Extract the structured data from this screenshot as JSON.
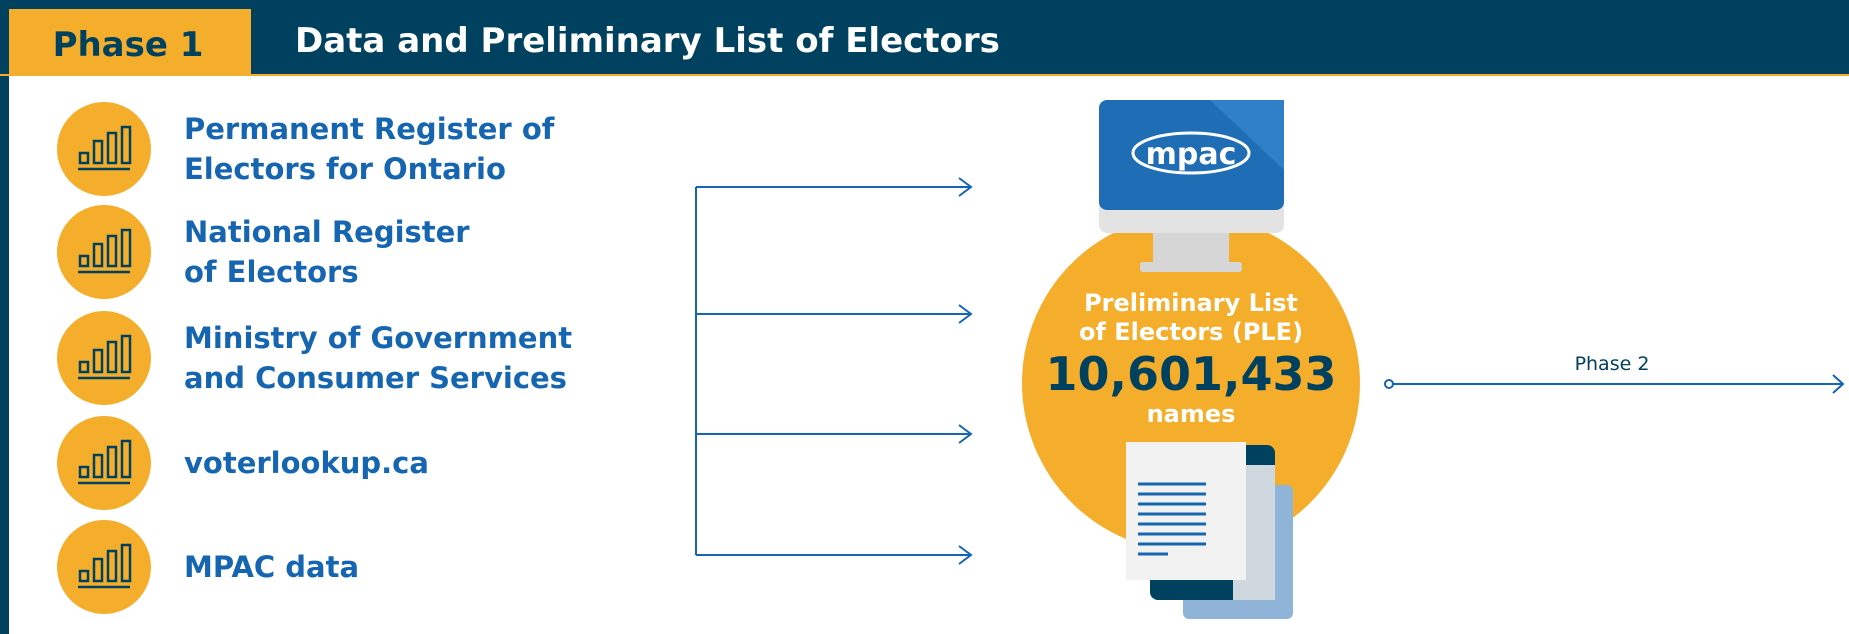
{
  "header": {
    "phase": "Phase 1",
    "title": "Data and Preliminary List of Electors"
  },
  "sources": [
    {
      "lines": [
        "Permanent Register of",
        "Electors for Ontario"
      ]
    },
    {
      "lines": [
        "National Register",
        "of Electors"
      ]
    },
    {
      "lines": [
        "Ministry of Government",
        "and Consumer Services"
      ]
    },
    {
      "lines": [
        "voterlookup.ca"
      ]
    },
    {
      "lines": [
        "MPAC data"
      ]
    }
  ],
  "ple": {
    "logo": "mpac",
    "label": [
      "Preliminary List",
      "of Electors (PLE)"
    ],
    "count": "10,601,433",
    "unit": "names"
  },
  "next": "Phase 2"
}
